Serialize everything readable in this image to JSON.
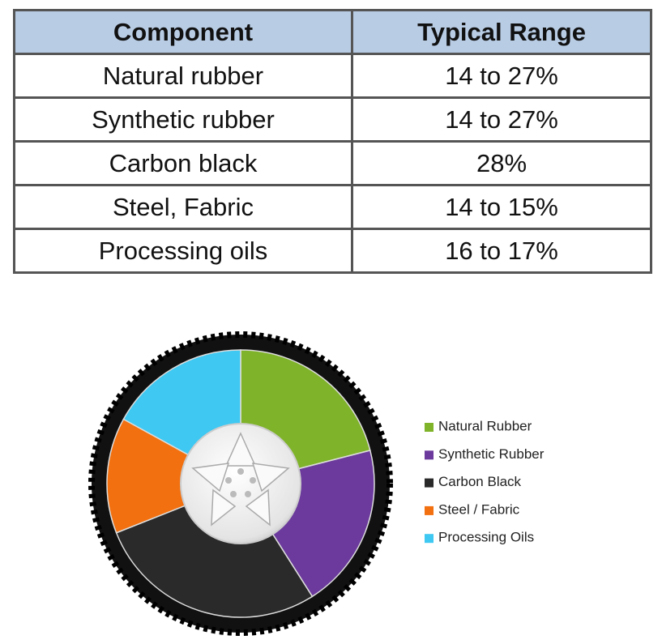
{
  "table": {
    "header": [
      "Component",
      "Typical Range"
    ],
    "rows": [
      [
        "Natural rubber",
        "14 to 27%"
      ],
      [
        "Synthetic rubber",
        "14 to 27%"
      ],
      [
        "Carbon black",
        "28%"
      ],
      [
        "Steel, Fabric",
        "14 to 15%"
      ],
      [
        "Processing oils",
        "16 to 17%"
      ]
    ]
  },
  "chart_data": {
    "type": "pie",
    "categories": [
      "Natural Rubber",
      "Synthetic Rubber",
      "Carbon Black",
      "Steel / Fabric",
      "Processing Oils"
    ],
    "values": [
      21,
      20,
      28,
      14,
      17
    ],
    "colors": [
      "#7fb32a",
      "#6b3a9c",
      "#2a2a2a",
      "#f2700f",
      "#3ec8f2"
    ]
  }
}
